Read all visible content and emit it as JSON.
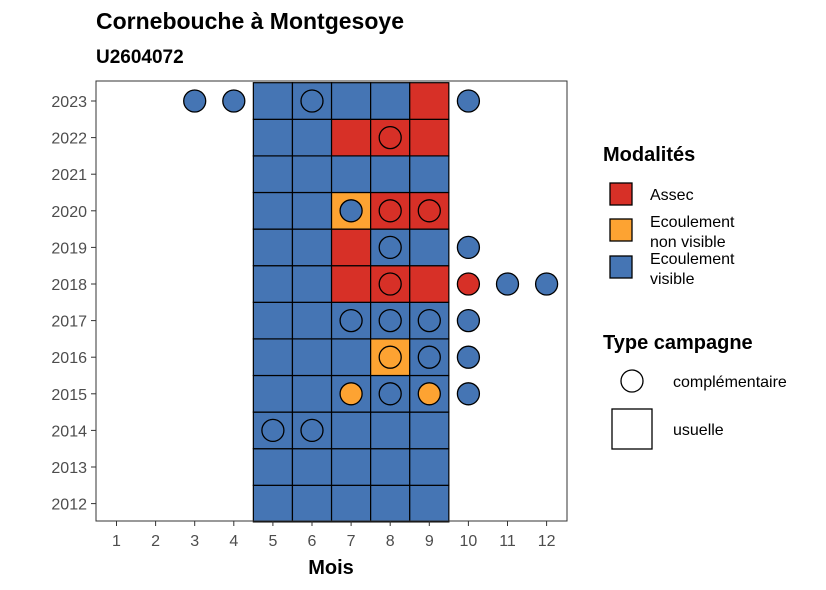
{
  "chart_data": {
    "type": "heatmap",
    "title": "Cornebouche à Montgesoye",
    "subtitle": "U2604072",
    "xlabel": "Mois",
    "x_ticks": [
      1,
      2,
      3,
      4,
      5,
      6,
      7,
      8,
      9,
      10,
      11,
      12
    ],
    "y_ticks": [
      2012,
      2013,
      2014,
      2015,
      2016,
      2017,
      2018,
      2019,
      2020,
      2021,
      2022,
      2023
    ],
    "colors": {
      "Assec": "#D73027",
      "Ecoulement non visible": "#FDA332",
      "Ecoulement visible": "#4575B4"
    },
    "legend": {
      "fill": {
        "title": "Modalités",
        "items": [
          {
            "key": "Assec",
            "lines": [
              "Assec"
            ]
          },
          {
            "key": "Ecoulement non visible",
            "lines": [
              "Ecoulement",
              "non visible"
            ]
          },
          {
            "key": "Ecoulement visible",
            "lines": [
              "Ecoulement",
              "visible"
            ]
          }
        ]
      },
      "shape": {
        "title": "Type campagne",
        "items": [
          {
            "shape": "circle",
            "label": "complémentaire"
          },
          {
            "shape": "square",
            "label": "usuelle"
          }
        ]
      },
      "placement": "right"
    },
    "usuelle": [
      {
        "year": 2012,
        "months": [
          5,
          6,
          7,
          8,
          9
        ],
        "values": [
          "Ecoulement visible",
          "Ecoulement visible",
          "Ecoulement visible",
          "Ecoulement visible",
          "Ecoulement visible"
        ]
      },
      {
        "year": 2013,
        "months": [
          5,
          6,
          7,
          8,
          9
        ],
        "values": [
          "Ecoulement visible",
          "Ecoulement visible",
          "Ecoulement visible",
          "Ecoulement visible",
          "Ecoulement visible"
        ]
      },
      {
        "year": 2014,
        "months": [
          5,
          6,
          7,
          8,
          9
        ],
        "values": [
          "Ecoulement visible",
          "Ecoulement visible",
          "Ecoulement visible",
          "Ecoulement visible",
          "Ecoulement visible"
        ]
      },
      {
        "year": 2015,
        "months": [
          5,
          6,
          7,
          8,
          9
        ],
        "values": [
          "Ecoulement visible",
          "Ecoulement visible",
          "Ecoulement visible",
          "Ecoulement visible",
          "Ecoulement visible"
        ]
      },
      {
        "year": 2016,
        "months": [
          5,
          6,
          7,
          8,
          9
        ],
        "values": [
          "Ecoulement visible",
          "Ecoulement visible",
          "Ecoulement visible",
          "Ecoulement non visible",
          "Ecoulement visible"
        ]
      },
      {
        "year": 2017,
        "months": [
          5,
          6,
          7,
          8,
          9
        ],
        "values": [
          "Ecoulement visible",
          "Ecoulement visible",
          "Ecoulement visible",
          "Ecoulement visible",
          "Ecoulement visible"
        ]
      },
      {
        "year": 2018,
        "months": [
          5,
          6,
          7,
          8,
          9
        ],
        "values": [
          "Ecoulement visible",
          "Ecoulement visible",
          "Assec",
          "Assec",
          "Assec"
        ]
      },
      {
        "year": 2019,
        "months": [
          5,
          6,
          7,
          8,
          9
        ],
        "values": [
          "Ecoulement visible",
          "Ecoulement visible",
          "Assec",
          "Ecoulement visible",
          "Ecoulement visible"
        ]
      },
      {
        "year": 2020,
        "months": [
          5,
          6,
          7,
          8,
          9
        ],
        "values": [
          "Ecoulement visible",
          "Ecoulement visible",
          "Ecoulement non visible",
          "Assec",
          "Assec"
        ]
      },
      {
        "year": 2021,
        "months": [
          5,
          6,
          7,
          8,
          9
        ],
        "values": [
          "Ecoulement visible",
          "Ecoulement visible",
          "Ecoulement visible",
          "Ecoulement visible",
          "Ecoulement visible"
        ]
      },
      {
        "year": 2022,
        "months": [
          5,
          6,
          7,
          8,
          9
        ],
        "values": [
          "Ecoulement visible",
          "Ecoulement visible",
          "Assec",
          "Assec",
          "Assec"
        ]
      },
      {
        "year": 2023,
        "months": [
          5,
          6,
          7,
          8,
          9
        ],
        "values": [
          "Ecoulement visible",
          "Ecoulement visible",
          "Ecoulement visible",
          "Ecoulement visible",
          "Assec"
        ]
      }
    ],
    "complementaire": [
      {
        "year": 2023,
        "month": 3,
        "value": "Ecoulement visible"
      },
      {
        "year": 2023,
        "month": 4,
        "value": "Ecoulement visible"
      },
      {
        "year": 2023,
        "month": 6,
        "value": "Ecoulement visible"
      },
      {
        "year": 2023,
        "month": 10,
        "value": "Ecoulement visible"
      },
      {
        "year": 2022,
        "month": 8,
        "value": "Assec"
      },
      {
        "year": 2020,
        "month": 7,
        "value": "Ecoulement visible"
      },
      {
        "year": 2020,
        "month": 8,
        "value": "Assec"
      },
      {
        "year": 2020,
        "month": 9,
        "value": "Assec"
      },
      {
        "year": 2019,
        "month": 8,
        "value": "Ecoulement visible"
      },
      {
        "year": 2019,
        "month": 10,
        "value": "Ecoulement visible"
      },
      {
        "year": 2018,
        "month": 8,
        "value": "Assec"
      },
      {
        "year": 2018,
        "month": 10,
        "value": "Assec"
      },
      {
        "year": 2018,
        "month": 11,
        "value": "Ecoulement visible"
      },
      {
        "year": 2018,
        "month": 12,
        "value": "Ecoulement visible"
      },
      {
        "year": 2017,
        "month": 7,
        "value": "Ecoulement visible"
      },
      {
        "year": 2017,
        "month": 8,
        "value": "Ecoulement visible"
      },
      {
        "year": 2017,
        "month": 9,
        "value": "Ecoulement visible"
      },
      {
        "year": 2017,
        "month": 10,
        "value": "Ecoulement visible"
      },
      {
        "year": 2016,
        "month": 8,
        "value": "Ecoulement non visible"
      },
      {
        "year": 2016,
        "month": 9,
        "value": "Ecoulement visible"
      },
      {
        "year": 2016,
        "month": 10,
        "value": "Ecoulement visible"
      },
      {
        "year": 2015,
        "month": 7,
        "value": "Ecoulement non visible"
      },
      {
        "year": 2015,
        "month": 8,
        "value": "Ecoulement visible"
      },
      {
        "year": 2015,
        "month": 9,
        "value": "Ecoulement non visible"
      },
      {
        "year": 2015,
        "month": 10,
        "value": "Ecoulement visible"
      },
      {
        "year": 2014,
        "month": 5,
        "value": "Ecoulement visible"
      },
      {
        "year": 2014,
        "month": 6,
        "value": "Ecoulement visible"
      }
    ],
    "grid": false
  }
}
